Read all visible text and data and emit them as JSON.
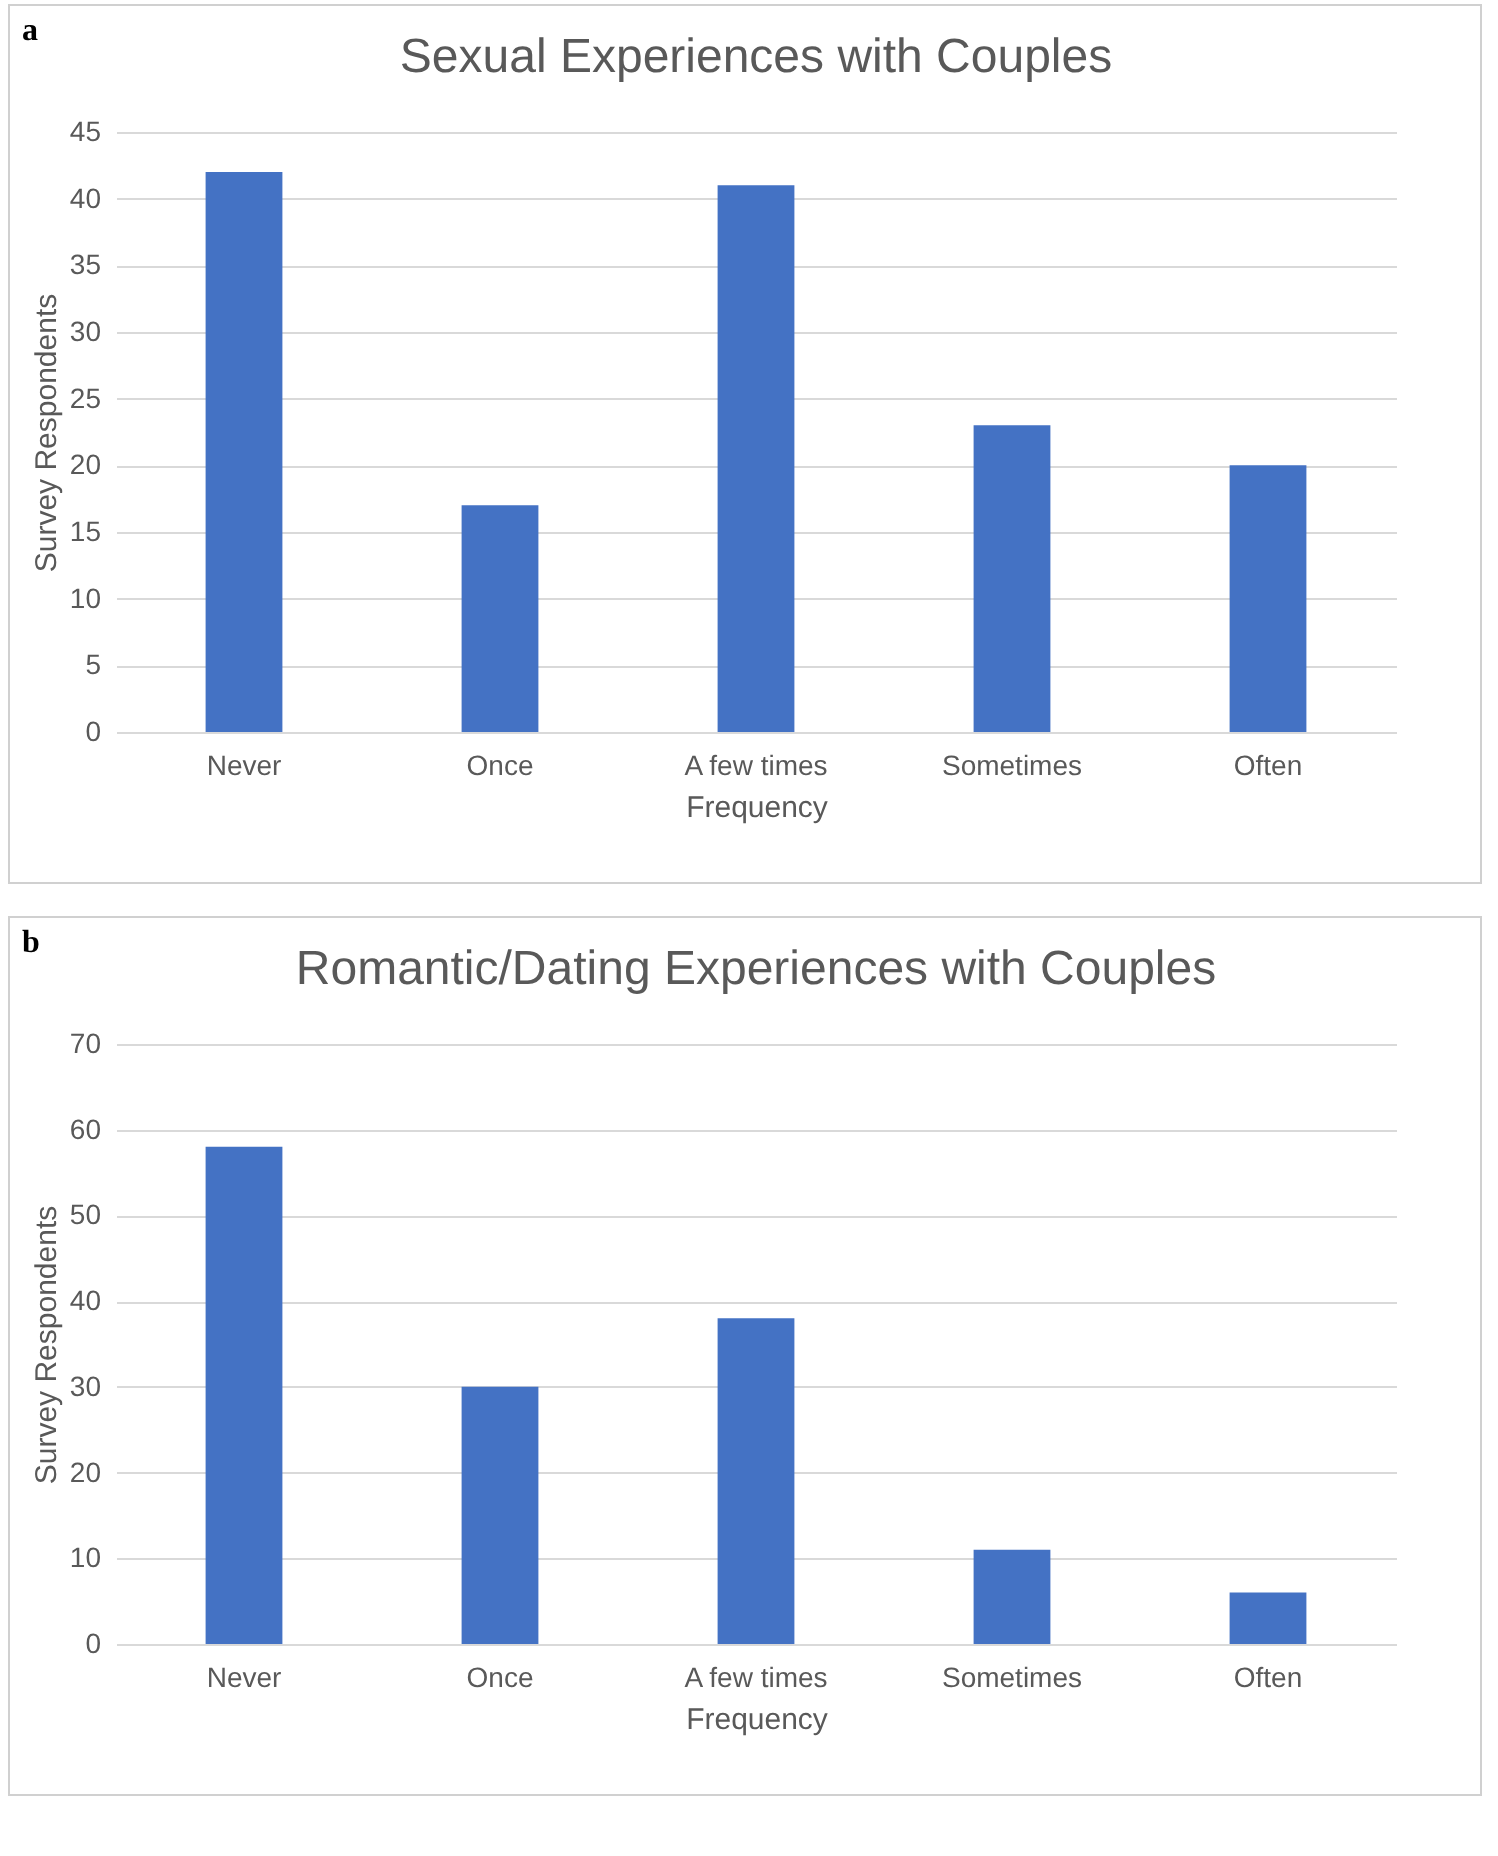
{
  "chart_data": [
    {
      "type": "bar",
      "title": "Sexual Experiences with Couples",
      "xlabel": "Frequency",
      "ylabel": "Survey Respondents",
      "annotations": [
        "a"
      ],
      "categories": [
        "Never",
        "Once",
        "A few times",
        "Sometimes",
        "Often"
      ],
      "values": [
        42,
        17,
        41,
        23,
        20
      ],
      "color": "#4472c4",
      "ylim": [
        0,
        45
      ],
      "yticks": [
        0,
        5,
        10,
        15,
        20,
        25,
        30,
        35,
        40,
        45
      ],
      "grid": "y"
    },
    {
      "type": "bar",
      "title": "Romantic/Dating Experiences with Couples",
      "xlabel": "Frequency",
      "ylabel": "Survey Respondents",
      "annotations": [
        "b"
      ],
      "categories": [
        "Never",
        "Once",
        "A few times",
        "Sometimes",
        "Often"
      ],
      "values": [
        58,
        30,
        38,
        11,
        6
      ],
      "color": "#4472c4",
      "ylim": [
        0,
        70
      ],
      "yticks": [
        0,
        10,
        20,
        30,
        40,
        50,
        60,
        70
      ],
      "grid": "y"
    }
  ]
}
